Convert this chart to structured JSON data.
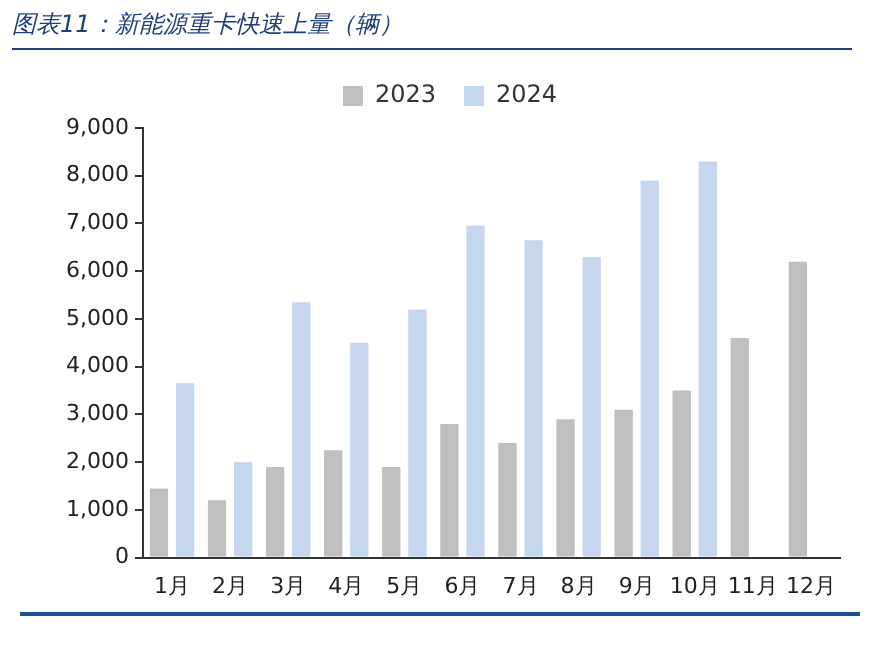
{
  "chart_data": {
    "type": "bar",
    "title": "图表11：新能源重卡快速上量（辆）",
    "categories": [
      "1月",
      "2月",
      "3月",
      "4月",
      "5月",
      "6月",
      "7月",
      "8月",
      "9月",
      "10月",
      "11月",
      "12月"
    ],
    "series": [
      {
        "name": "2023",
        "color": "#bfbfbf",
        "values": [
          1450,
          1200,
          1900,
          2250,
          1900,
          2800,
          2400,
          2900,
          3100,
          3500,
          4600,
          6200
        ]
      },
      {
        "name": "2024",
        "color": "#c5d6ee",
        "values": [
          3650,
          2000,
          5350,
          4500,
          5200,
          6950,
          6650,
          6300,
          7900,
          8300,
          null,
          null
        ]
      }
    ],
    "ylim": [
      0,
      9000
    ],
    "yticks": [
      0,
      {
        "value": 1000,
        "label": "1,000"
      },
      {
        "value": 2000,
        "label": "2,000"
      },
      {
        "value": 3000,
        "label": "3,000"
      },
      {
        "value": 4000,
        "label": "4,000"
      },
      {
        "value": 5000,
        "label": "5,000"
      },
      {
        "value": 6000,
        "label": "6,000"
      },
      {
        "value": 7000,
        "label": "7,000"
      },
      {
        "value": 8000,
        "label": "8,000"
      },
      {
        "value": 9000,
        "label": "9,000"
      }
    ],
    "grid": false,
    "legend": "top"
  }
}
